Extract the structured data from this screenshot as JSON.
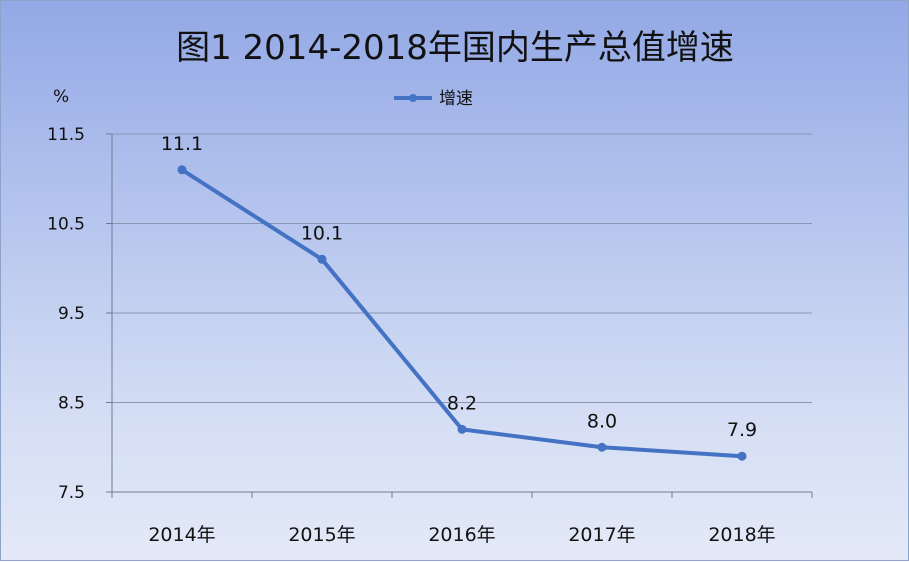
{
  "chart_data": {
    "type": "line",
    "title": "图1  2014-2018年国内生产总值增速",
    "ylabel": "%",
    "categories": [
      "2014年",
      "2015年",
      "2016年",
      "2017年",
      "2018年"
    ],
    "series": [
      {
        "name": "增速",
        "values": [
          11.1,
          10.1,
          8.2,
          8.0,
          7.9
        ],
        "labels": [
          "11.1",
          "10.1",
          "8.2",
          "8.0",
          "7.9"
        ],
        "color": "#4472c4"
      }
    ],
    "ylim": [
      7.5,
      11.5
    ],
    "yticks": [
      "7.5",
      "8.5",
      "9.5",
      "10.5",
      "11.5"
    ],
    "ytick_values": [
      7.5,
      8.5,
      9.5,
      10.5,
      11.5
    ],
    "grid": true,
    "legend": "top-center"
  }
}
